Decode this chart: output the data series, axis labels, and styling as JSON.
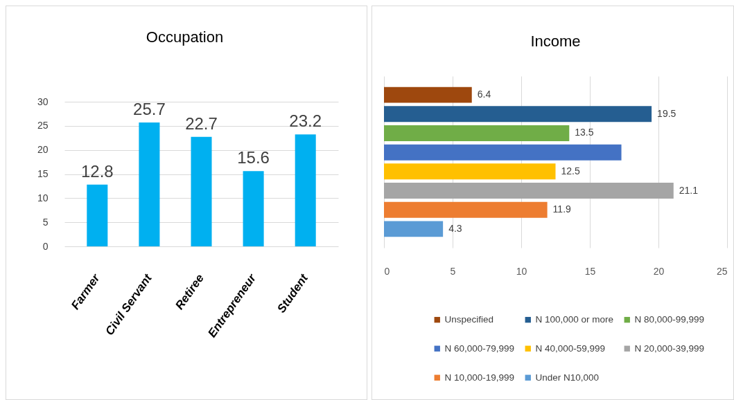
{
  "chart_data": [
    {
      "type": "bar",
      "title": "Occupation",
      "categories": [
        "Farmer",
        "Civil Servant",
        "Retiree",
        "Entrepreneur",
        "Student"
      ],
      "values": [
        12.8,
        25.7,
        22.7,
        15.6,
        23.2
      ],
      "color": "#00b0f0",
      "ylim": [
        0,
        30
      ],
      "yticks": [
        0,
        5,
        10,
        15,
        20,
        25,
        30
      ],
      "grid": "y",
      "data_labels": true
    },
    {
      "type": "bar",
      "title": "Income",
      "orientation": "horizontal",
      "categories": [
        null
      ],
      "series": [
        {
          "name": "Unspecified",
          "color": "#9e480e",
          "values": [
            6.4
          ],
          "value_labels": [
            "6.4"
          ]
        },
        {
          "name": "N 100,000 or more",
          "color": "#255e91",
          "values": [
            19.5
          ],
          "value_labels": [
            "19.5"
          ]
        },
        {
          "name": "N 80,000-99,999",
          "color": "#70ad47",
          "values": [
            13.5
          ],
          "value_labels": [
            "13.5"
          ]
        },
        {
          "name": "N 60,000-79,999",
          "color": "#4472c4",
          "values": [
            17.3
          ],
          "value_labels": [
            null
          ]
        },
        {
          "name": "N 40,000-59,999",
          "color": "#ffc000",
          "values": [
            12.5
          ],
          "value_labels": [
            "12.5"
          ]
        },
        {
          "name": "N 20,000-39,999",
          "color": "#a5a5a5",
          "values": [
            21.1
          ],
          "value_labels": [
            "21.1"
          ]
        },
        {
          "name": "N 10,000-19,999",
          "color": "#ed7d31",
          "values": [
            11.9
          ],
          "value_labels": [
            "11.9"
          ]
        },
        {
          "name": "Under N10,000",
          "color": "#5b9bd5",
          "values": [
            4.3
          ],
          "value_labels": [
            "4.3"
          ]
        }
      ],
      "xlim": [
        0,
        25
      ],
      "xticks": [
        0,
        5,
        10,
        15,
        20,
        25
      ],
      "grid": "x",
      "legend": "bottom"
    }
  ]
}
